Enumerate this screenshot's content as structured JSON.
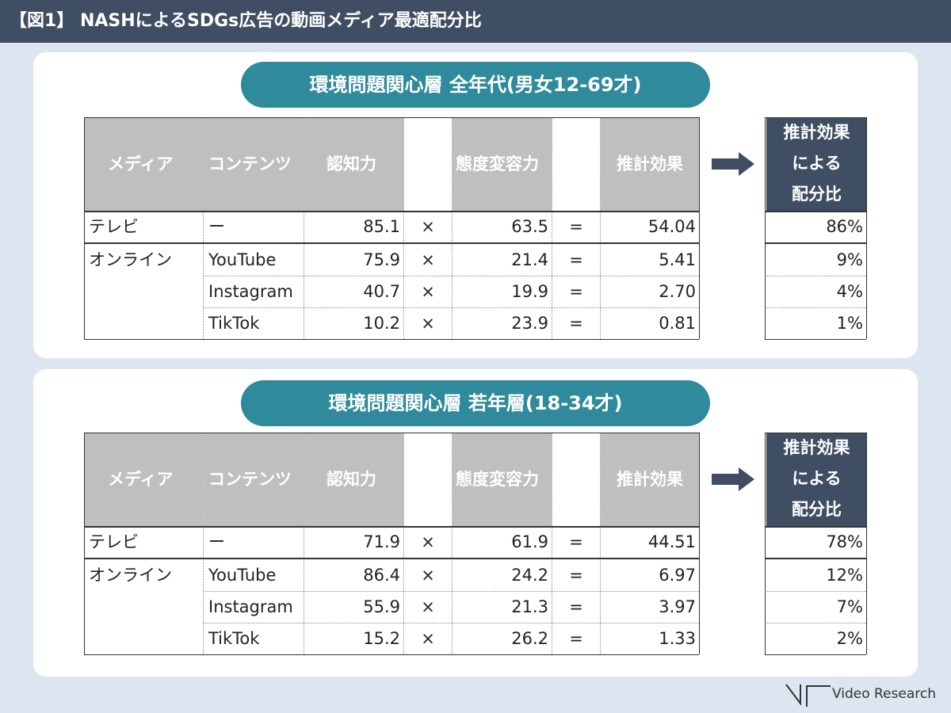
{
  "header": {
    "title": "【図1】 NASHによるSDGs広告の動画メディア最適配分比"
  },
  "columns": {
    "media": "メディア",
    "content": "コンテンツ",
    "awareness": "認知力",
    "attitude": "態度変容力",
    "estimated": "推計効果",
    "allocation_lines": [
      "推計効果",
      "による",
      "配分比"
    ]
  },
  "operators": {
    "multiply": "×",
    "equals": "="
  },
  "media_labels": {
    "tv": "テレビ",
    "online": "オンライン",
    "tv_content": "ー"
  },
  "colors": {
    "header_bar": "#3f4e62",
    "pill": "#2f8a9b",
    "header_gray": "#bfbfbf",
    "allocation_header": "#3f4e62",
    "background": "#dde5f0"
  },
  "chart_data": [
    {
      "type": "table",
      "title": "環境問題関心層  全年代(男女12-69才)",
      "rows": [
        {
          "media": "テレビ",
          "content": "ー",
          "awareness": "85.1",
          "attitude": "63.5",
          "effect": "54.04",
          "allocation": "86%"
        },
        {
          "media": "オンライン",
          "content": "YouTube",
          "awareness": "75.9",
          "attitude": "21.4",
          "effect": "5.41",
          "allocation": "9%"
        },
        {
          "media": "",
          "content": "Instagram",
          "awareness": "40.7",
          "attitude": "19.9",
          "effect": "2.70",
          "allocation": "4%"
        },
        {
          "media": "",
          "content": "TikTok",
          "awareness": "10.2",
          "attitude": "23.9",
          "effect": "0.81",
          "allocation": "1%"
        }
      ]
    },
    {
      "type": "table",
      "title": "環境問題関心層  若年層(18-34才)",
      "rows": [
        {
          "media": "テレビ",
          "content": "ー",
          "awareness": "71.9",
          "attitude": "61.9",
          "effect": "44.51",
          "allocation": "78%"
        },
        {
          "media": "オンライン",
          "content": "YouTube",
          "awareness": "86.4",
          "attitude": "24.2",
          "effect": "6.97",
          "allocation": "12%"
        },
        {
          "media": "",
          "content": "Instagram",
          "awareness": "55.9",
          "attitude": "21.3",
          "effect": "3.97",
          "allocation": "7%"
        },
        {
          "media": "",
          "content": "TikTok",
          "awareness": "15.2",
          "attitude": "26.2",
          "effect": "1.33",
          "allocation": "2%"
        }
      ]
    }
  ],
  "footer": {
    "logo_text": "Video Research",
    "logo_icon": "video-research-logo-icon"
  }
}
